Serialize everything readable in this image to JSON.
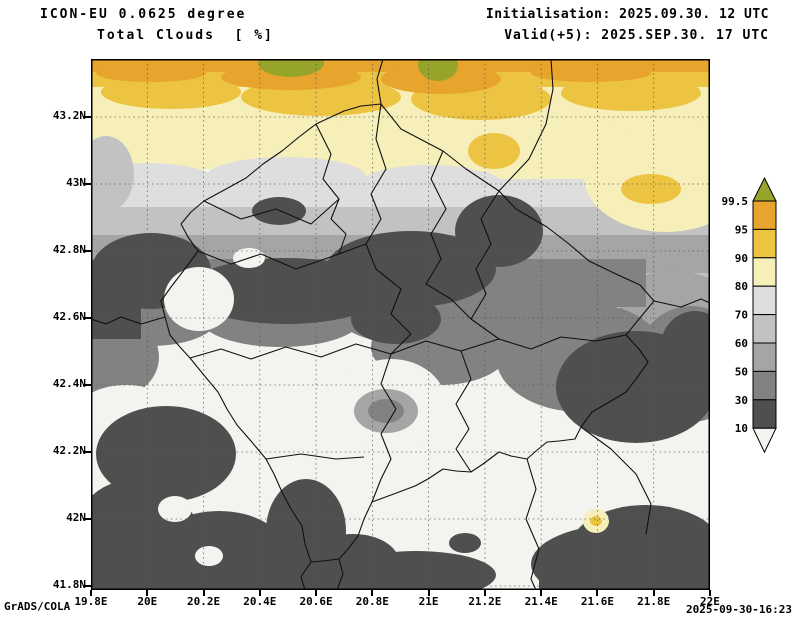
{
  "header": {
    "model_title": "ICON-EU 0.0625 degree",
    "variable_title": "Total Clouds  [ %]",
    "initialisation": "Initialisation: 2025.09.30. 12 UTC",
    "valid": "Valid(+5): 2025.SEP.30. 17 UTC"
  },
  "footer": {
    "credit": "GrADS/COLA",
    "timestamp": "2025-09-30-16:23"
  },
  "chart_data": {
    "type": "heatmap",
    "title": "Total Clouds [ %]",
    "model": "ICON-EU 0.0625 degree",
    "init_time": "2025.09.30. 12 UTC",
    "valid_time": "2025.SEP.30. 17 UTC",
    "forecast_hour": "+5",
    "units": "%",
    "grid": true,
    "legend_position": "right",
    "lon_axis": {
      "ticks": [
        "19.8E",
        "20E",
        "20.2E",
        "20.4E",
        "20.6E",
        "20.8E",
        "21E",
        "21.2E",
        "21.4E",
        "21.6E",
        "21.8E",
        "22E"
      ],
      "range": [
        19.8,
        22.0
      ]
    },
    "lat_axis": {
      "ticks": [
        "43.2N",
        "43N",
        "42.8N",
        "42.6N",
        "42.4N",
        "42.2N",
        "42N",
        "41.8N"
      ],
      "range": [
        41.8,
        43.37
      ]
    },
    "colorbar": {
      "tick_labels": [
        "99.5",
        "95",
        "90",
        "80",
        "70",
        "60",
        "50",
        "30",
        "10"
      ],
      "segments_top_to_bottom": [
        {
          "id": "gt995",
          "range": "> 99.5",
          "color": "#97a42a"
        },
        {
          "id": "s95",
          "range": "95 - 99.5",
          "color": "#e7a52e"
        },
        {
          "id": "s90",
          "range": "90 - 95",
          "color": "#edc442"
        },
        {
          "id": "s80",
          "range": "80 - 90",
          "color": "#f6efb9"
        },
        {
          "id": "s70",
          "range": "70 - 80",
          "color": "#dedede"
        },
        {
          "id": "s60",
          "range": "60 - 70",
          "color": "#c2c2c2"
        },
        {
          "id": "s50",
          "range": "50 - 60",
          "color": "#a5a5a5"
        },
        {
          "id": "s30",
          "range": "30 - 50",
          "color": "#828282"
        },
        {
          "id": "s10",
          "range": "10 - 30",
          "color": "#4f4f4f"
        },
        {
          "id": "lt10",
          "range": "< 10",
          "color": "#f3f3ef"
        }
      ]
    },
    "field_summary": "Overcast band (80 to >99.5%) along the northern edge of the domain; broken 30-70% cloud across the centre with embedded dark 10-30% patches; mostly clear (<10%) south and southeast with large scattered 10-30% areas and a dark band along the bottom edge."
  }
}
